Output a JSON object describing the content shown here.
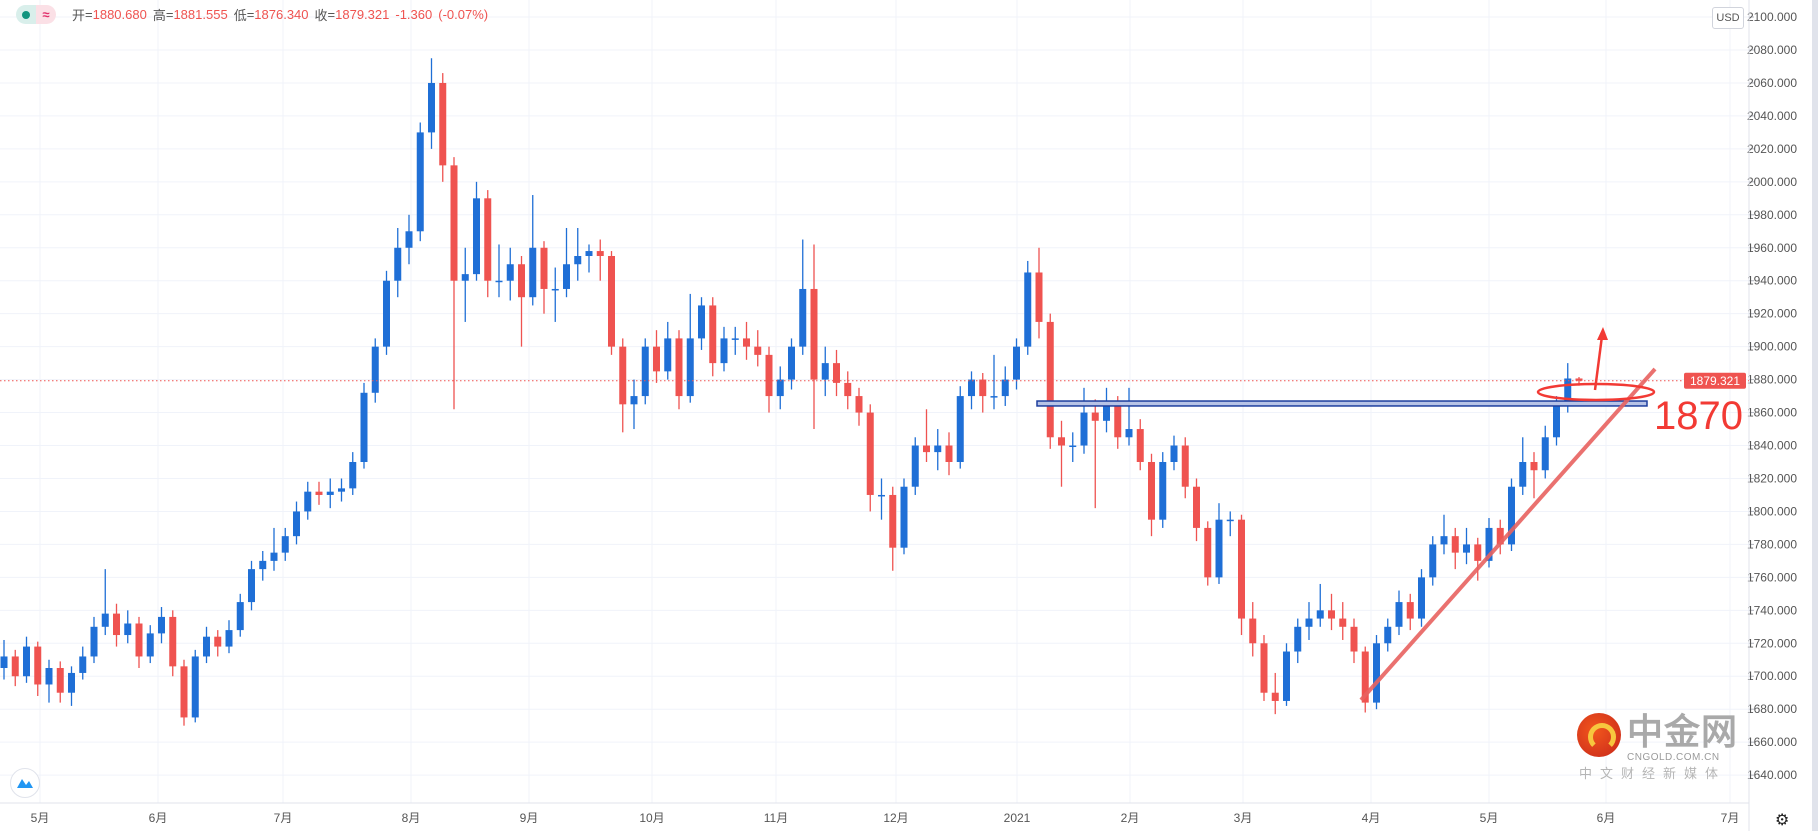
{
  "legend": {
    "open_label": "开",
    "open": "1880.680",
    "high_label": "高",
    "high": "1881.555",
    "low_label": "低",
    "low": "1876.340",
    "close_label": "收",
    "close": "1879.321",
    "change": "-1.360",
    "change_pct": "(-0.07%)",
    "status_icon": "green-dot-icon",
    "wave_icon": "approx-icon",
    "wave_symbol": "≈"
  },
  "currency_button": "USD",
  "current_price_label": "1879.321",
  "annotation_text": "1870",
  "brand": {
    "name": "中金网",
    "domain": "CNGOLD.COM.CN",
    "tagline": "中文财经新媒体"
  },
  "colors": {
    "up": "#1f6fd6",
    "down": "#ef5350",
    "annotation": "#f23a34",
    "zone": "#1e3f9e",
    "grid": "#f0f3fa"
  },
  "chart_data": {
    "type": "candlestick",
    "grid": true,
    "ylim": [
      1640,
      2100
    ],
    "yticks": [
      "2100.000",
      "2080.000",
      "2060.000",
      "2040.000",
      "2020.000",
      "2000.000",
      "1980.000",
      "1960.000",
      "1940.000",
      "1920.000",
      "1900.000",
      "1880.000",
      "1860.000",
      "1840.000",
      "1820.000",
      "1800.000",
      "1780.000",
      "1760.000",
      "1740.000",
      "1720.000",
      "1700.000",
      "1680.000",
      "1660.000",
      "1640.000"
    ],
    "xticks": [
      "5月",
      "6月",
      "7月",
      "8月",
      "9月",
      "10月",
      "11月",
      "12月",
      "2021",
      "2月",
      "3月",
      "4月",
      "5月",
      "6月",
      "7月"
    ],
    "last_price": 1879.321,
    "support_zone": [
      1864,
      1867
    ],
    "candles_ohlc": [
      [
        1705,
        1722,
        1698,
        1712
      ],
      [
        1712,
        1716,
        1694,
        1700
      ],
      [
        1700,
        1724,
        1696,
        1718
      ],
      [
        1718,
        1721,
        1688,
        1695
      ],
      [
        1695,
        1710,
        1684,
        1705
      ],
      [
        1705,
        1709,
        1684,
        1690
      ],
      [
        1690,
        1706,
        1682,
        1702
      ],
      [
        1702,
        1718,
        1698,
        1712
      ],
      [
        1712,
        1736,
        1708,
        1730
      ],
      [
        1730,
        1765,
        1725,
        1738
      ],
      [
        1738,
        1744,
        1718,
        1725
      ],
      [
        1725,
        1740,
        1720,
        1732
      ],
      [
        1732,
        1736,
        1705,
        1712
      ],
      [
        1712,
        1731,
        1708,
        1726
      ],
      [
        1726,
        1742,
        1720,
        1736
      ],
      [
        1736,
        1740,
        1700,
        1706
      ],
      [
        1706,
        1710,
        1670,
        1675
      ],
      [
        1675,
        1716,
        1672,
        1712
      ],
      [
        1712,
        1730,
        1708,
        1724
      ],
      [
        1724,
        1728,
        1712,
        1718
      ],
      [
        1718,
        1734,
        1714,
        1728
      ],
      [
        1728,
        1750,
        1724,
        1745
      ],
      [
        1745,
        1770,
        1740,
        1765
      ],
      [
        1765,
        1776,
        1758,
        1770
      ],
      [
        1770,
        1790,
        1764,
        1775
      ],
      [
        1775,
        1790,
        1770,
        1785
      ],
      [
        1785,
        1806,
        1780,
        1800
      ],
      [
        1800,
        1818,
        1795,
        1812
      ],
      [
        1812,
        1818,
        1804,
        1810
      ],
      [
        1810,
        1820,
        1802,
        1812
      ],
      [
        1812,
        1820,
        1806,
        1814
      ],
      [
        1814,
        1836,
        1810,
        1830
      ],
      [
        1830,
        1878,
        1826,
        1872
      ],
      [
        1872,
        1905,
        1866,
        1900
      ],
      [
        1900,
        1946,
        1895,
        1940
      ],
      [
        1940,
        1972,
        1930,
        1960
      ],
      [
        1960,
        1980,
        1950,
        1970
      ],
      [
        1970,
        2036,
        1964,
        2030
      ],
      [
        2030,
        2075,
        2020,
        2060
      ],
      [
        2060,
        2066,
        2000,
        2010
      ],
      [
        2010,
        2015,
        1862,
        1940
      ],
      [
        1940,
        1960,
        1915,
        1944
      ],
      [
        1944,
        2000,
        1940,
        1990
      ],
      [
        1990,
        1995,
        1930,
        1940
      ],
      [
        1940,
        1962,
        1930,
        1940
      ],
      [
        1940,
        1960,
        1928,
        1950
      ],
      [
        1950,
        1955,
        1900,
        1930
      ],
      [
        1930,
        1992,
        1925,
        1960
      ],
      [
        1960,
        1964,
        1920,
        1935
      ],
      [
        1935,
        1948,
        1915,
        1935
      ],
      [
        1935,
        1972,
        1930,
        1950
      ],
      [
        1950,
        1972,
        1940,
        1955
      ],
      [
        1955,
        1962,
        1945,
        1958
      ],
      [
        1958,
        1965,
        1940,
        1955
      ],
      [
        1955,
        1958,
        1895,
        1900
      ],
      [
        1900,
        1905,
        1848,
        1865
      ],
      [
        1865,
        1880,
        1850,
        1870
      ],
      [
        1870,
        1905,
        1865,
        1900
      ],
      [
        1900,
        1910,
        1878,
        1885
      ],
      [
        1885,
        1915,
        1880,
        1905
      ],
      [
        1905,
        1910,
        1862,
        1870
      ],
      [
        1870,
        1932,
        1866,
        1905
      ],
      [
        1905,
        1930,
        1898,
        1925
      ],
      [
        1925,
        1930,
        1882,
        1890
      ],
      [
        1890,
        1912,
        1885,
        1905
      ],
      [
        1905,
        1912,
        1895,
        1905
      ],
      [
        1905,
        1915,
        1892,
        1900
      ],
      [
        1900,
        1910,
        1888,
        1895
      ],
      [
        1895,
        1900,
        1860,
        1870
      ],
      [
        1870,
        1888,
        1862,
        1880
      ],
      [
        1880,
        1905,
        1874,
        1900
      ],
      [
        1900,
        1965,
        1895,
        1935
      ],
      [
        1935,
        1962,
        1850,
        1880
      ],
      [
        1880,
        1900,
        1870,
        1890
      ],
      [
        1890,
        1898,
        1870,
        1878
      ],
      [
        1878,
        1885,
        1862,
        1870
      ],
      [
        1870,
        1875,
        1852,
        1860
      ],
      [
        1860,
        1865,
        1800,
        1810
      ],
      [
        1810,
        1820,
        1795,
        1810
      ],
      [
        1810,
        1815,
        1764,
        1778
      ],
      [
        1778,
        1820,
        1774,
        1815
      ],
      [
        1815,
        1845,
        1810,
        1840
      ],
      [
        1840,
        1862,
        1830,
        1836
      ],
      [
        1836,
        1850,
        1825,
        1840
      ],
      [
        1840,
        1848,
        1822,
        1830
      ],
      [
        1830,
        1876,
        1826,
        1870
      ],
      [
        1870,
        1885,
        1862,
        1880
      ],
      [
        1880,
        1884,
        1860,
        1870
      ],
      [
        1870,
        1895,
        1862,
        1870
      ],
      [
        1870,
        1888,
        1864,
        1880
      ],
      [
        1880,
        1905,
        1874,
        1900
      ],
      [
        1900,
        1952,
        1895,
        1945
      ],
      [
        1945,
        1960,
        1905,
        1915
      ],
      [
        1915,
        1920,
        1838,
        1845
      ],
      [
        1845,
        1855,
        1815,
        1840
      ],
      [
        1840,
        1848,
        1830,
        1840
      ],
      [
        1840,
        1875,
        1835,
        1860
      ],
      [
        1860,
        1868,
        1802,
        1855
      ],
      [
        1855,
        1875,
        1848,
        1865
      ],
      [
        1865,
        1870,
        1838,
        1845
      ],
      [
        1845,
        1875,
        1840,
        1850
      ],
      [
        1850,
        1856,
        1825,
        1830
      ],
      [
        1830,
        1835,
        1785,
        1795
      ],
      [
        1795,
        1836,
        1790,
        1830
      ],
      [
        1830,
        1846,
        1825,
        1840
      ],
      [
        1840,
        1845,
        1808,
        1815
      ],
      [
        1815,
        1820,
        1782,
        1790
      ],
      [
        1790,
        1794,
        1755,
        1760
      ],
      [
        1760,
        1805,
        1756,
        1795
      ],
      [
        1795,
        1800,
        1785,
        1795
      ],
      [
        1795,
        1798,
        1725,
        1735
      ],
      [
        1735,
        1745,
        1712,
        1720
      ],
      [
        1720,
        1725,
        1685,
        1690
      ],
      [
        1690,
        1702,
        1677,
        1685
      ],
      [
        1685,
        1720,
        1682,
        1715
      ],
      [
        1715,
        1735,
        1708,
        1730
      ],
      [
        1730,
        1745,
        1722,
        1735
      ],
      [
        1735,
        1756,
        1730,
        1740
      ],
      [
        1740,
        1750,
        1728,
        1735
      ],
      [
        1735,
        1745,
        1722,
        1730
      ],
      [
        1730,
        1735,
        1708,
        1715
      ],
      [
        1715,
        1718,
        1678,
        1684
      ],
      [
        1684,
        1725,
        1680,
        1720
      ],
      [
        1720,
        1735,
        1715,
        1730
      ],
      [
        1730,
        1752,
        1725,
        1745
      ],
      [
        1745,
        1750,
        1728,
        1735
      ],
      [
        1735,
        1765,
        1730,
        1760
      ],
      [
        1760,
        1785,
        1755,
        1780
      ],
      [
        1780,
        1798,
        1774,
        1785
      ],
      [
        1785,
        1790,
        1765,
        1775
      ],
      [
        1775,
        1790,
        1768,
        1780
      ],
      [
        1780,
        1784,
        1758,
        1770
      ],
      [
        1770,
        1796,
        1766,
        1790
      ],
      [
        1790,
        1795,
        1774,
        1780
      ],
      [
        1780,
        1820,
        1776,
        1815
      ],
      [
        1815,
        1845,
        1810,
        1830
      ],
      [
        1830,
        1836,
        1808,
        1825
      ],
      [
        1825,
        1852,
        1820,
        1845
      ],
      [
        1845,
        1870,
        1840,
        1865
      ],
      [
        1865,
        1890,
        1860,
        1880.68
      ],
      [
        1880.68,
        1881.555,
        1876.34,
        1879.321
      ]
    ]
  }
}
